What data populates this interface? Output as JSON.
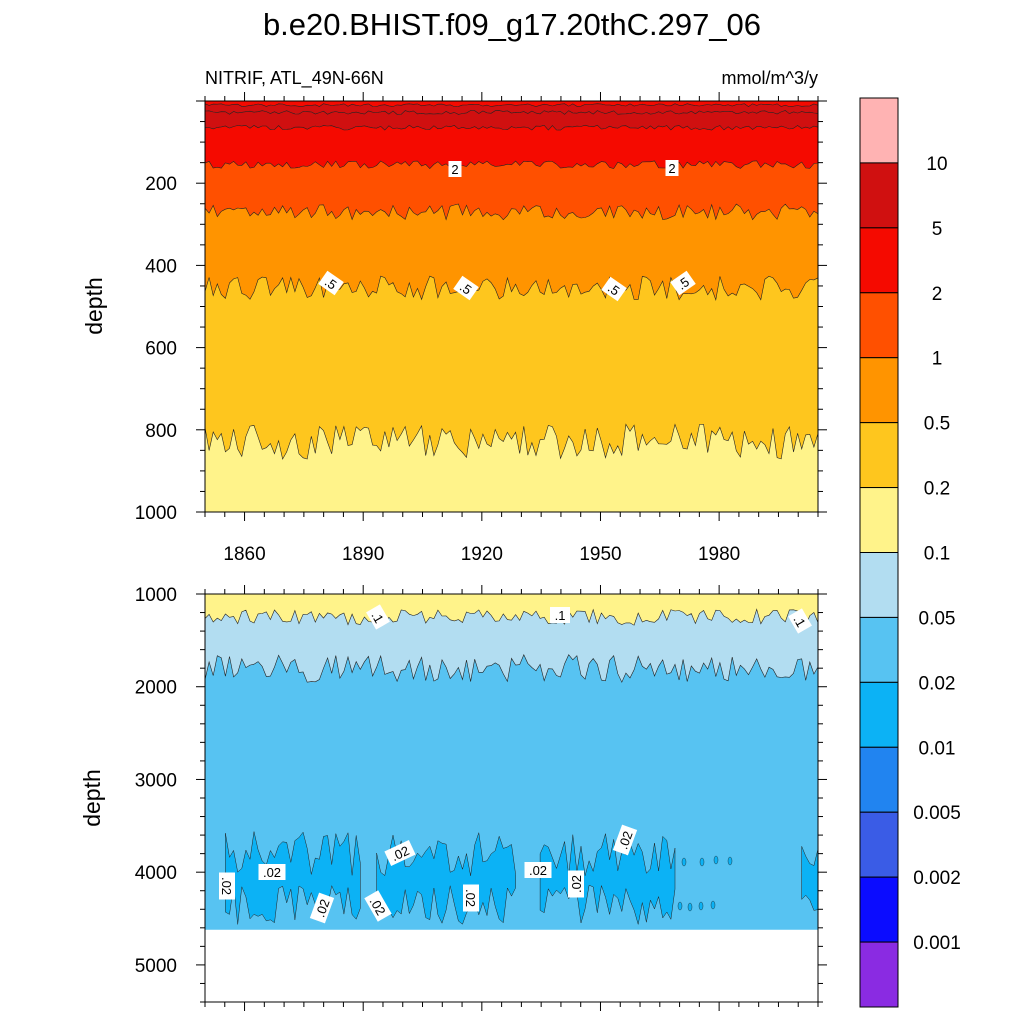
{
  "chart_data": {
    "type": "contour",
    "title": "b.e20.BHIST.f09_g17.20thC.297_06",
    "variable": "NITRIF, ATL_49N-66N",
    "units": "mmol/m^3/y",
    "x": {
      "label": "",
      "range": [
        1850,
        2005
      ],
      "ticks": [
        "1860",
        "1890",
        "1920",
        "1950",
        "1980"
      ]
    },
    "colorbar": {
      "labels": [
        "10",
        "5",
        "2",
        "1",
        "0.5",
        "0.2",
        "0.1",
        "0.05",
        "0.02",
        "0.01",
        "0.005",
        "0.002",
        "0.001"
      ],
      "colors": [
        "#ffb3b3",
        "#d01010",
        "#f50a00",
        "#ff5000",
        "#ff9400",
        "#fec61e",
        "#fff38a",
        "#b2ddf1",
        "#57c3f2",
        "#0cb2f5",
        "#2184f0",
        "#3a5ce6",
        "#0b0cff",
        "#8a2be2"
      ]
    },
    "panels": [
      {
        "name": "upper",
        "ylabel": "depth",
        "yrange": [
          0,
          1000
        ],
        "yticks": [
          "200",
          "400",
          "600",
          "800",
          "1000"
        ],
        "contour_labels": [
          "2",
          "2",
          ".5",
          ".5",
          ".5",
          ".5"
        ],
        "bands": [
          {
            "from_depth": 0,
            "to_depth": 25,
            "level": "5-10"
          },
          {
            "from_depth": 25,
            "to_depth": 60,
            "level": "5-10"
          },
          {
            "from_depth": 60,
            "to_depth": 160,
            "level": "2-5"
          },
          {
            "from_depth": 160,
            "to_depth": 270,
            "level": "1-2"
          },
          {
            "from_depth": 270,
            "to_depth": 450,
            "level": "0.5-1"
          },
          {
            "from_depth": 450,
            "to_depth": 830,
            "level": "0.2-0.5"
          },
          {
            "from_depth": 830,
            "to_depth": 1000,
            "level": "0.1-0.2"
          }
        ]
      },
      {
        "name": "lower",
        "ylabel": "depth",
        "yrange": [
          1000,
          5400
        ],
        "yticks": [
          "1000",
          "2000",
          "3000",
          "4000",
          "5000"
        ],
        "contour_labels": [
          ".1",
          ".1",
          ".1",
          ".02",
          ".02",
          ".02",
          ".02",
          ".02",
          ".02",
          ".02",
          ".02",
          ".02"
        ],
        "bottom_depth": 4620,
        "bands": [
          {
            "from_depth": 1000,
            "to_depth": 1250,
            "level": "0.1-0.2"
          },
          {
            "from_depth": 1250,
            "to_depth": 1800,
            "level": "0.05-0.1"
          },
          {
            "from_depth": 1800,
            "to_depth": 4620,
            "level": "0.02-0.05"
          },
          {
            "from_depth": 3700,
            "to_depth": 4400,
            "level": "0.01-0.02",
            "note": "patches"
          }
        ]
      }
    ]
  }
}
